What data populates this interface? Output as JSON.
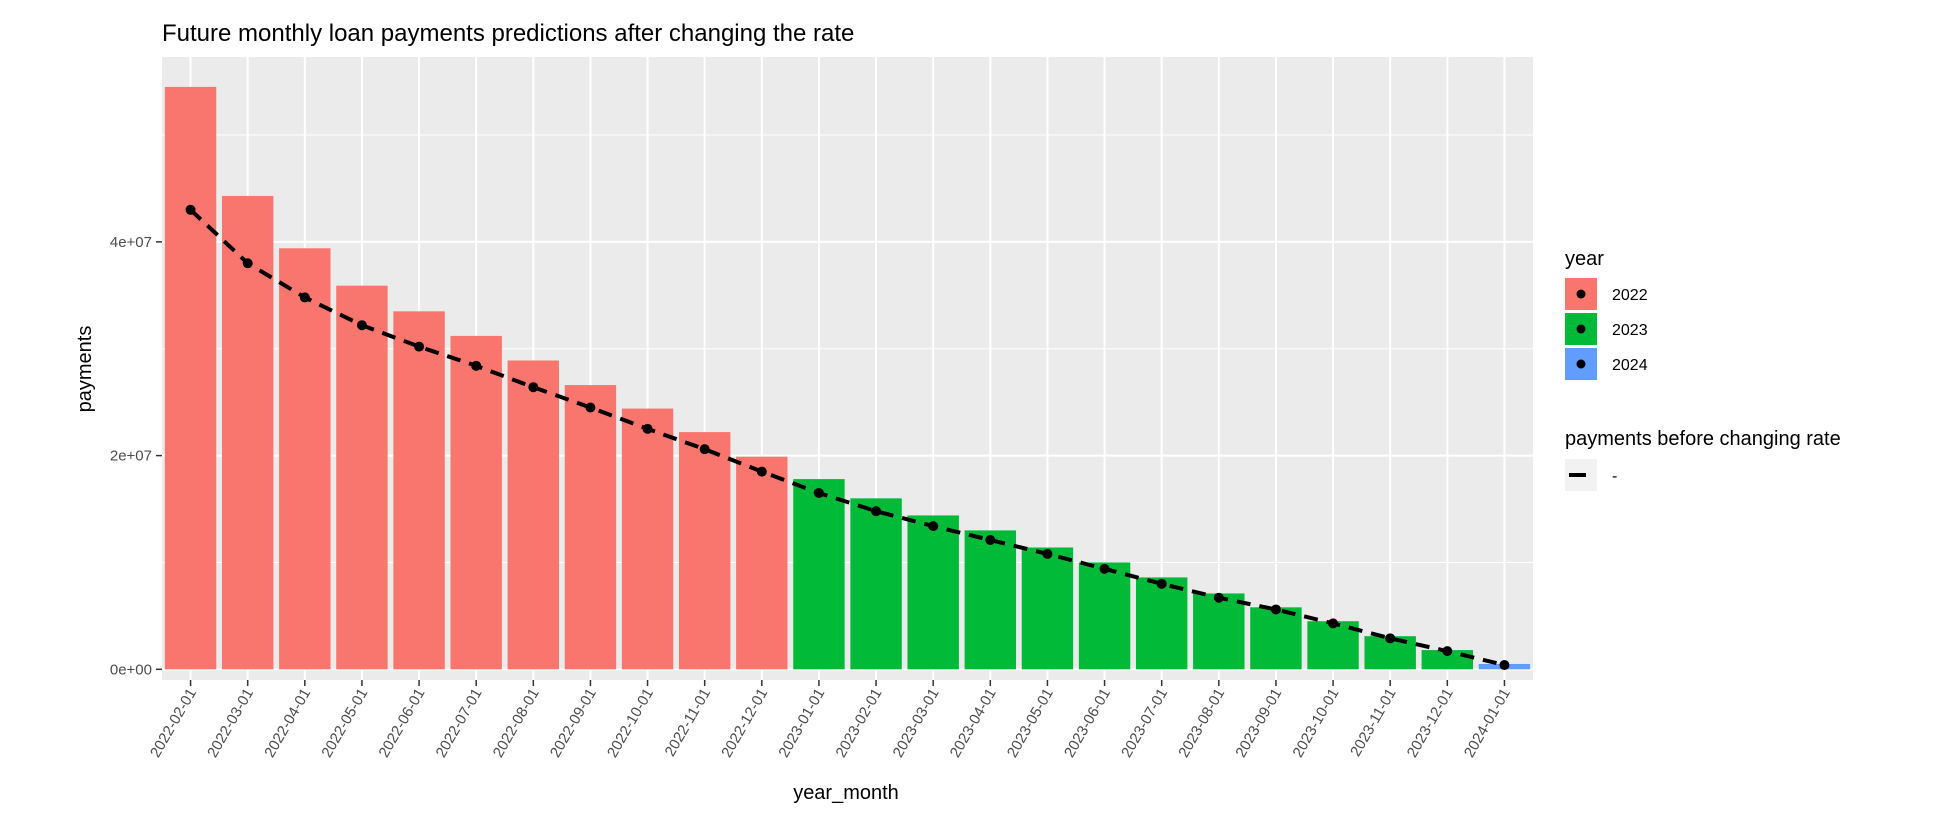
{
  "chart_data": {
    "type": "bar",
    "title": "Future monthly loan payments predictions after changing the rate",
    "xlabel": "year_month",
    "ylabel": "payments",
    "categories": [
      "2022-02-01",
      "2022-03-01",
      "2022-04-01",
      "2022-05-01",
      "2022-06-01",
      "2022-07-01",
      "2022-08-01",
      "2022-09-01",
      "2022-10-01",
      "2022-11-01",
      "2022-12-01",
      "2023-01-01",
      "2023-02-01",
      "2023-03-01",
      "2023-04-01",
      "2023-05-01",
      "2023-06-01",
      "2023-07-01",
      "2023-08-01",
      "2023-09-01",
      "2023-10-01",
      "2023-11-01",
      "2023-12-01",
      "2024-01-01"
    ],
    "year_group": [
      "2022",
      "2022",
      "2022",
      "2022",
      "2022",
      "2022",
      "2022",
      "2022",
      "2022",
      "2022",
      "2022",
      "2023",
      "2023",
      "2023",
      "2023",
      "2023",
      "2023",
      "2023",
      "2023",
      "2023",
      "2023",
      "2023",
      "2023",
      "2024"
    ],
    "values": [
      54500000,
      44300000,
      39400000,
      35900000,
      33500000,
      31200000,
      28900000,
      26600000,
      24400000,
      22200000,
      19900000,
      17800000,
      16000000,
      14400000,
      13000000,
      11400000,
      10000000,
      8600000,
      7100000,
      5800000,
      4500000,
      3100000,
      1800000,
      500000
    ],
    "line": {
      "name": "payments before changing rate",
      "legend_label": "-",
      "values": [
        43000000,
        38000000,
        34800000,
        32200000,
        30200000,
        28400000,
        26400000,
        24500000,
        22500000,
        20600000,
        18500000,
        16500000,
        14800000,
        13400000,
        12100000,
        10800000,
        9400000,
        8000000,
        6700000,
        5600000,
        4300000,
        2900000,
        1700000,
        400000
      ],
      "style": "dashed"
    },
    "ylim": [
      -1000000,
      57300000
    ],
    "yticks": [
      0,
      20000000,
      40000000
    ],
    "ytick_labels": [
      "0e+00",
      "2e+07",
      "4e+07"
    ],
    "legend": {
      "title": "year",
      "entries": [
        {
          "label": "2022",
          "color": "#F8766D"
        },
        {
          "label": "2023",
          "color": "#00BA38"
        },
        {
          "label": "2024",
          "color": "#619CFF"
        }
      ],
      "placement": "right"
    },
    "grid": true,
    "panel_color": "#EBEBEB"
  }
}
